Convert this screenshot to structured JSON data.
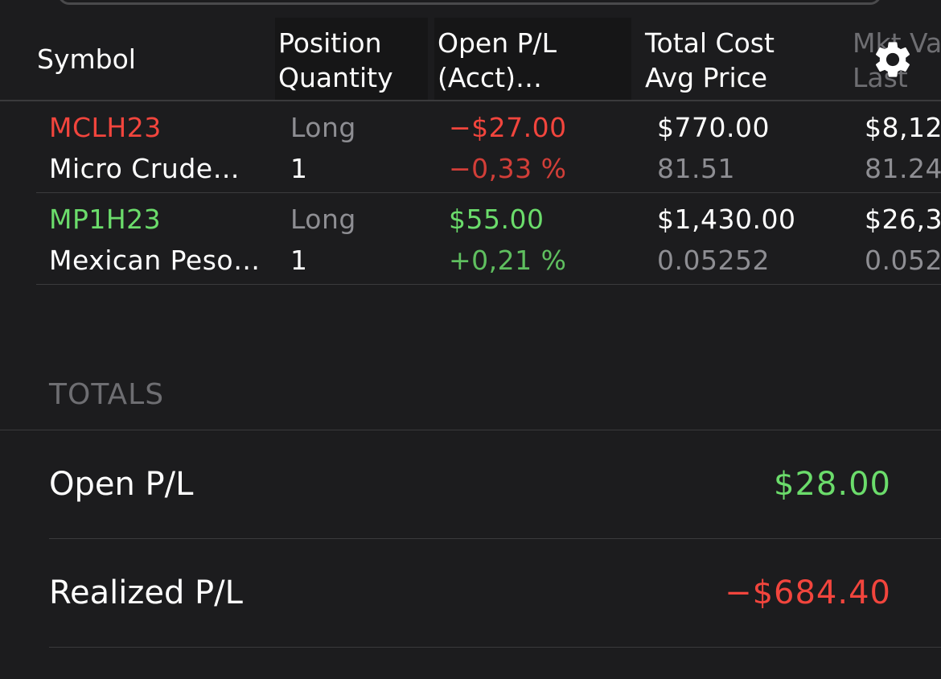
{
  "header": {
    "columns": [
      {
        "line1": "Symbol",
        "line2": ""
      },
      {
        "line1": "Position",
        "line2": "Quantity"
      },
      {
        "line1": "Open P/L",
        "line2": "(Acct)…"
      },
      {
        "line1": "Total Cost",
        "line2": "Avg Price"
      },
      {
        "line1": "Mkt Va",
        "line2": "Last"
      }
    ],
    "settings_icon": "gear-icon"
  },
  "positions": [
    {
      "symbol": "MCLH23",
      "name": "Micro Crude…",
      "side": "Long",
      "quantity": "1",
      "open_pl": "−$27.00",
      "open_pl_pct": "−0,33 %",
      "total_cost": "$770.00",
      "avg_price": "81.51",
      "mkt_value": "$8,12",
      "last": "81.24",
      "status": "loss"
    },
    {
      "symbol": "MP1H23",
      "name": "Mexican Peso…",
      "side": "Long",
      "quantity": "1",
      "open_pl": "$55.00",
      "open_pl_pct": "+0,21 %",
      "total_cost": "$1,430.00",
      "avg_price": "0.05252",
      "mkt_value": "$26,3",
      "last": "0.052",
      "status": "gain"
    }
  ],
  "totals": {
    "section_label": "TOTALS",
    "open_pl_label": "Open P/L",
    "open_pl_value": "$28.00",
    "realized_pl_label": "Realized P/L",
    "realized_pl_value": "−$684.40"
  },
  "colors": {
    "background": "#1c1c1e",
    "loss": "#f2453d",
    "gain": "#6bdc6b",
    "secondary_text": "#8e8e93",
    "divider": "#3a3a3c"
  }
}
